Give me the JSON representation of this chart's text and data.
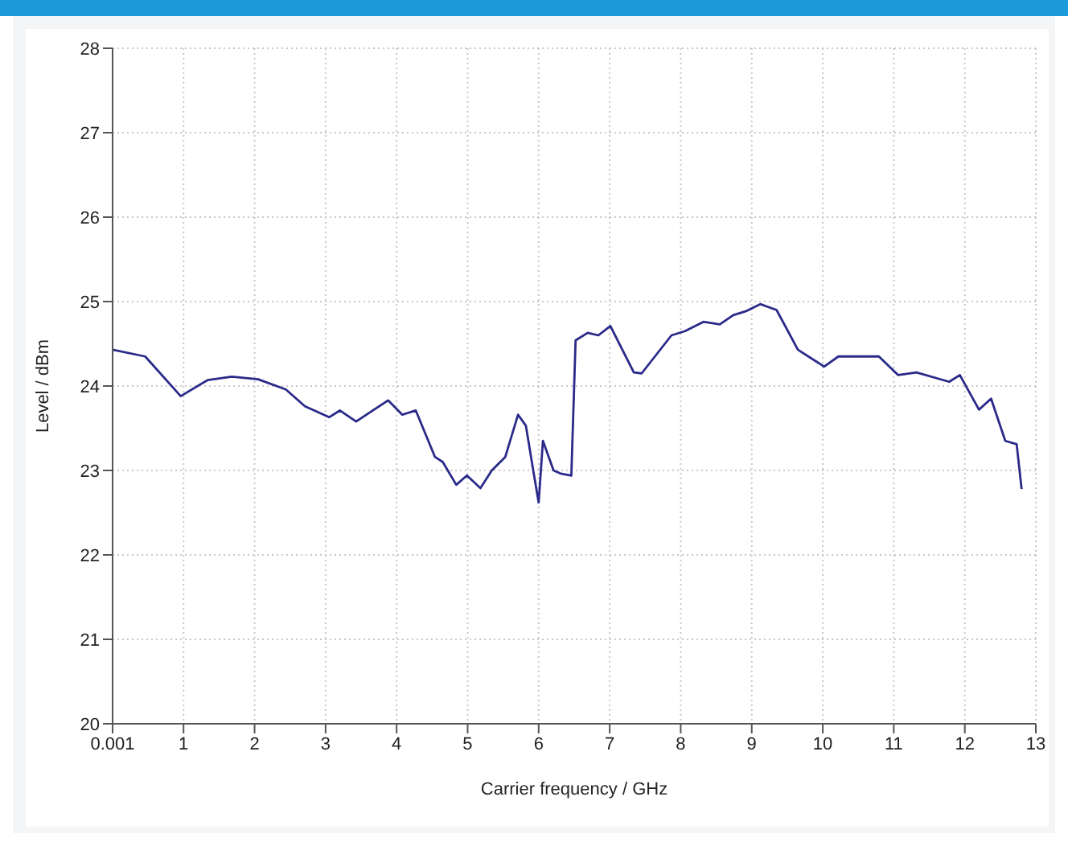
{
  "chart_data": {
    "type": "line",
    "xlabel": "Carrier frequency / GHz",
    "ylabel": "Level / dBm",
    "xlim": [
      0.001,
      13
    ],
    "xticks": [
      0.001,
      1,
      2,
      3,
      4,
      5,
      6,
      7,
      8,
      9,
      10,
      11,
      12,
      13
    ],
    "ylim": [
      20,
      28
    ],
    "yticks": [
      20,
      21,
      22,
      23,
      24,
      25,
      26,
      27,
      28
    ],
    "grid": true,
    "legend": false,
    "marker": "none",
    "line_style": "solid",
    "series": [
      {
        "color": "#2a2a8a",
        "x": [
          0.001,
          0.46,
          0.96,
          1.34,
          1.68,
          2.05,
          2.44,
          2.71,
          3.05,
          3.2,
          3.43,
          3.88,
          4.08,
          4.27,
          4.54,
          4.65,
          4.84,
          4.99,
          5.18,
          5.34,
          5.53,
          5.71,
          5.82,
          5.93,
          6.0,
          6.06,
          6.21,
          6.32,
          6.46,
          6.52,
          6.69,
          6.84,
          7.01,
          7.34,
          7.45,
          7.87,
          8.06,
          8.32,
          8.55,
          8.74,
          8.93,
          9.12,
          9.35,
          9.65,
          10.02,
          10.22,
          10.79,
          11.06,
          11.32,
          11.78,
          11.93,
          12.2,
          12.37,
          12.57,
          12.73,
          12.8
        ],
        "values": [
          24.43,
          24.35,
          23.88,
          24.07,
          24.11,
          24.08,
          23.96,
          23.76,
          23.63,
          23.71,
          23.58,
          23.83,
          23.66,
          23.71,
          23.16,
          23.1,
          22.83,
          22.94,
          22.79,
          23.0,
          23.16,
          23.66,
          23.53,
          22.97,
          22.62,
          23.35,
          23.0,
          22.96,
          22.94,
          24.54,
          24.63,
          24.6,
          24.71,
          24.16,
          24.15,
          24.6,
          24.65,
          24.76,
          24.73,
          24.84,
          24.89,
          24.97,
          24.9,
          24.43,
          24.23,
          24.35,
          24.35,
          24.13,
          24.16,
          24.05,
          24.13,
          23.72,
          23.85,
          23.35,
          23.31,
          22.78
        ]
      }
    ]
  }
}
